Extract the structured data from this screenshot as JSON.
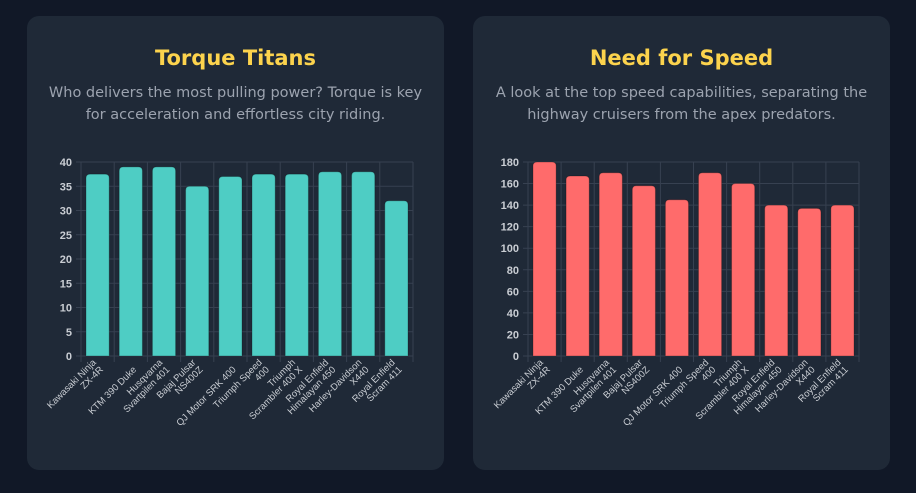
{
  "colors": {
    "torque_bar": "#4ecdc4",
    "speed_bar": "#ff6b6b",
    "title": "#fcd34d"
  },
  "chart_data": [
    {
      "type": "bar",
      "title": "Torque Titans",
      "subtitle": "Who delivers the most pulling power? Torque is key for acceleration and effortless city riding.",
      "categories": [
        [
          "Kawasaki Ninja",
          "ZX-4R"
        ],
        [
          "KTM 390 Duke"
        ],
        [
          "Husqvarna",
          "Svartpilen 401"
        ],
        [
          "Bajaj Pulsar",
          "NS400Z"
        ],
        [
          "QJ Motor SRK 400"
        ],
        [
          "Triumph Speed",
          "400"
        ],
        [
          "Triumph",
          "Scrambler 400 X"
        ],
        [
          "Royal Enfield",
          "Himalayan 450"
        ],
        [
          "Harley-Davidson",
          "X440"
        ],
        [
          "Royal Enfield",
          "Scram 411"
        ]
      ],
      "values": [
        37.5,
        39,
        39,
        35,
        37,
        37.5,
        37.5,
        38,
        38,
        32
      ],
      "ylim": [
        0,
        40
      ],
      "yticks": [
        0,
        5,
        10,
        15,
        20,
        25,
        30,
        35,
        40
      ],
      "grid": true,
      "xlabel": "",
      "ylabel": ""
    },
    {
      "type": "bar",
      "title": "Need for Speed",
      "subtitle": "A look at the top speed capabilities, separating the highway cruisers from the apex predators.",
      "categories": [
        [
          "Kawasaki Ninja",
          "ZX-4R"
        ],
        [
          "KTM 390 Duke"
        ],
        [
          "Husqvarna",
          "Svartpilen 401"
        ],
        [
          "Bajaj Pulsar",
          "NS400Z"
        ],
        [
          "QJ Motor SRK 400"
        ],
        [
          "Triumph Speed",
          "400"
        ],
        [
          "Triumph",
          "Scrambler 400 X"
        ],
        [
          "Royal Enfield",
          "Himalayan 450"
        ],
        [
          "Harley-Davidson",
          "X440"
        ],
        [
          "Royal Enfield",
          "Scram 411"
        ]
      ],
      "values": [
        180,
        167,
        170,
        158,
        145,
        170,
        160,
        140,
        137,
        140
      ],
      "ylim": [
        0,
        180
      ],
      "yticks": [
        0,
        20,
        40,
        60,
        80,
        100,
        120,
        140,
        160,
        180
      ],
      "grid": true,
      "xlabel": "",
      "ylabel": ""
    }
  ]
}
